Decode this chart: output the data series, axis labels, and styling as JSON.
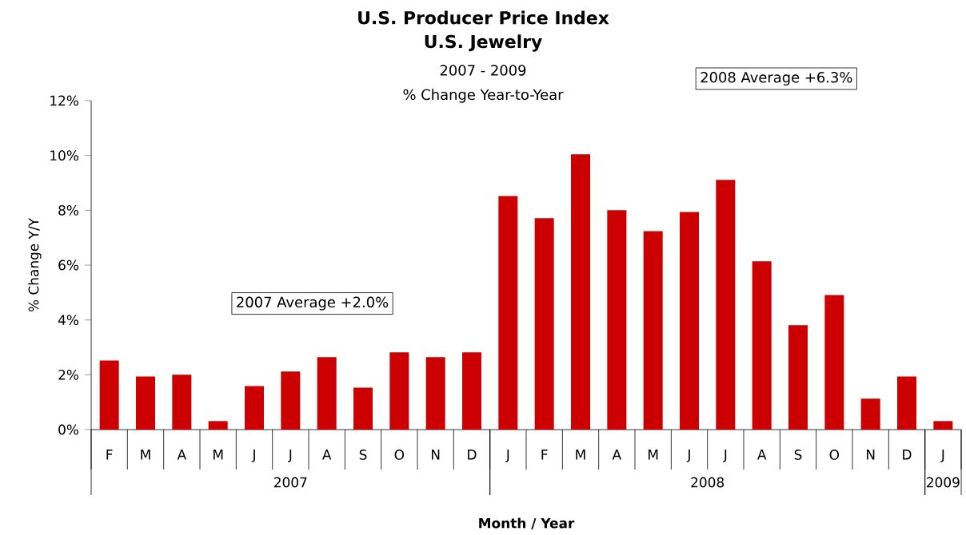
{
  "chart_data": {
    "type": "bar",
    "title": "U.S. Producer Price Index",
    "subtitle": "U.S. Jewelry",
    "xlabel": "Month / Year",
    "ylabel": "% Change Y/Y",
    "annotations": [
      "2007 - 2009",
      "% Change Year-to-Year",
      "2007 Average +2.0%",
      "2008 Average +6.3%",
      "2007",
      "2008",
      "2009"
    ],
    "categories": [
      "F",
      "M",
      "A",
      "M",
      "J",
      "J",
      "A",
      "S",
      "O",
      "N",
      "D",
      "J",
      "F",
      "M",
      "A",
      "M",
      "J",
      "J",
      "A",
      "S",
      "O",
      "N",
      "D",
      "J"
    ],
    "values": [
      2.52,
      1.94,
      2.0,
      0.31,
      1.59,
      2.12,
      2.64,
      1.53,
      2.82,
      2.64,
      2.82,
      8.52,
      7.71,
      10.04,
      8.0,
      7.24,
      7.94,
      9.11,
      6.14,
      3.81,
      4.91,
      1.13,
      1.94,
      0.31
    ],
    "color": "#cc0000",
    "ylim": [
      0,
      12
    ],
    "yticks": [
      {
        "value": 0,
        "label": "0%"
      },
      {
        "value": 2,
        "label": "2%"
      },
      {
        "value": 4,
        "label": "4%"
      },
      {
        "value": 6,
        "label": "6%"
      },
      {
        "value": 8,
        "label": "8%"
      },
      {
        "value": 10,
        "label": "10%"
      },
      {
        "value": 12,
        "label": "12%"
      }
    ],
    "grid": false
  }
}
